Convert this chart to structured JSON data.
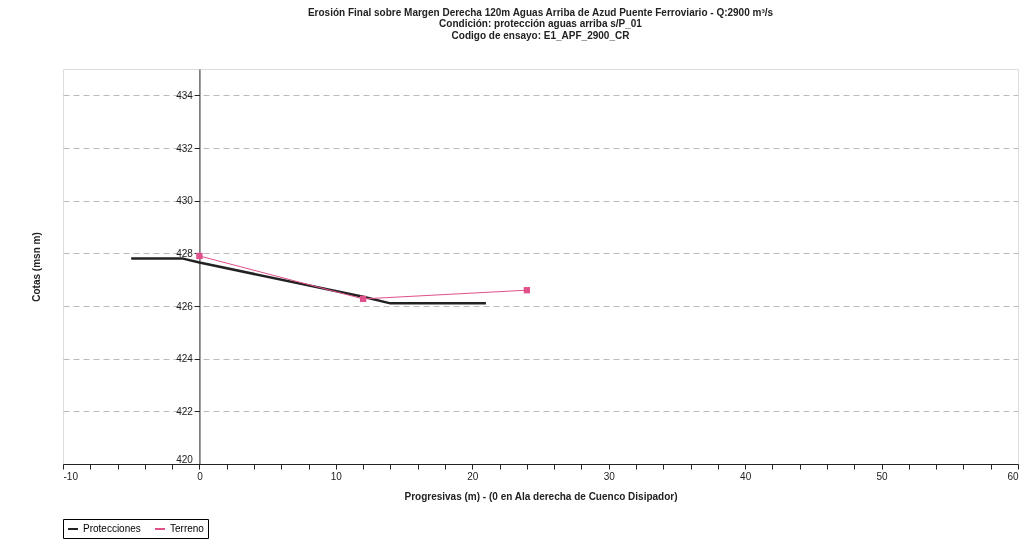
{
  "chart_data": {
    "type": "line",
    "title": "Erosión Final sobre Margen Derecha 120m Aguas Arriba de Azud Puente Ferroviario - Q:2900 m³/s",
    "subtitle": [
      "Condición: protección aguas arriba s/P_01",
      "Codigo de ensayo: E1_APF_2900_CR"
    ],
    "xlabel": "Progresivas (m) - (0 en Ala derecha de Cuenco Disipador)",
    "ylabel": "Cotas (msn m)",
    "xlim": [
      -10,
      60
    ],
    "xticks": [
      -10,
      {
        "value": -8,
        "label": null
      },
      {
        "value": -6,
        "label": null
      },
      {
        "value": -4,
        "label": null
      },
      {
        "value": -2,
        "label": null
      },
      0,
      {
        "value": 2,
        "label": null
      },
      {
        "value": 4,
        "label": null
      },
      {
        "value": 6,
        "label": null
      },
      {
        "value": 8,
        "label": null
      },
      10,
      {
        "value": 12,
        "label": null
      },
      {
        "value": 14,
        "label": null
      },
      {
        "value": 16,
        "label": null
      },
      {
        "value": 18,
        "label": null
      },
      20,
      {
        "value": 22,
        "label": null
      },
      {
        "value": 24,
        "label": null
      },
      {
        "value": 26,
        "label": null
      },
      {
        "value": 28,
        "label": null
      },
      30,
      {
        "value": 32,
        "label": null
      },
      {
        "value": 34,
        "label": null
      },
      {
        "value": 36,
        "label": null
      },
      {
        "value": 38,
        "label": null
      },
      40,
      {
        "value": 42,
        "label": null
      },
      {
        "value": 44,
        "label": null
      },
      {
        "value": 46,
        "label": null
      },
      {
        "value": 48,
        "label": null
      },
      50,
      {
        "value": 52,
        "label": null
      },
      {
        "value": 54,
        "label": null
      },
      {
        "value": 56,
        "label": null
      },
      {
        "value": 58,
        "label": null
      },
      60
    ],
    "ylim": [
      420,
      435
    ],
    "yticks": [
      420,
      422,
      424,
      426,
      428,
      430,
      432,
      434
    ],
    "grid": "y",
    "legend": "bottom",
    "series": [
      {
        "name": "Protecciones",
        "color": "#222222",
        "marker": "none",
        "x": [
          -5,
          -1.2,
          0,
          12,
          14,
          21
        ],
        "values": [
          427.8,
          427.8,
          427.65,
          426.35,
          426.1,
          426.1
        ]
      },
      {
        "name": "Terreno",
        "color": "#e0508a",
        "marker": "square",
        "x": [
          0,
          12,
          24
        ],
        "values": [
          427.9,
          426.27,
          426.6
        ]
      }
    ]
  }
}
